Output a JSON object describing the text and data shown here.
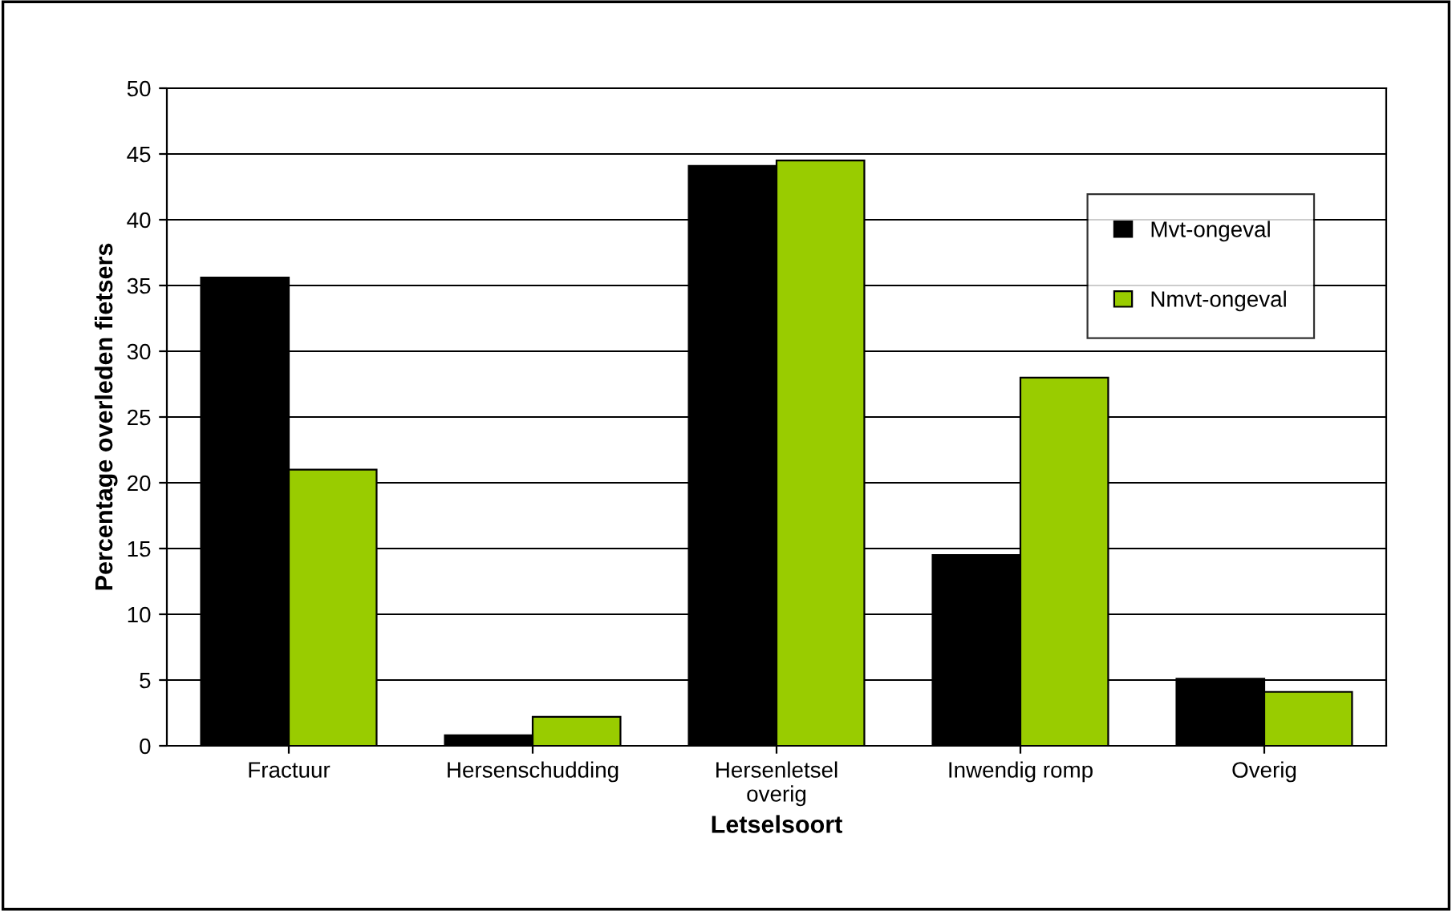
{
  "chart_data": {
    "type": "bar",
    "xlabel": "Letselsoort",
    "ylabel": "Percentage overleden fietsers",
    "categories": [
      "Fractuur",
      "Hersenschudding",
      "Hersenletsel\noverig",
      "Inwendig romp",
      "Overig"
    ],
    "series": [
      {
        "name": "Mvt-ongeval",
        "color": "#000000",
        "values": [
          35.6,
          0.8,
          44.1,
          14.5,
          5.1
        ]
      },
      {
        "name": "Nmvt-ongeval",
        "color": "#99cc00",
        "values": [
          21.0,
          2.2,
          44.5,
          28.0,
          4.1
        ]
      }
    ],
    "ylim": [
      0,
      50
    ],
    "yticks": [
      0,
      5,
      10,
      15,
      20,
      25,
      30,
      35,
      40,
      45,
      50
    ],
    "grid": "y",
    "legend": "top right"
  }
}
